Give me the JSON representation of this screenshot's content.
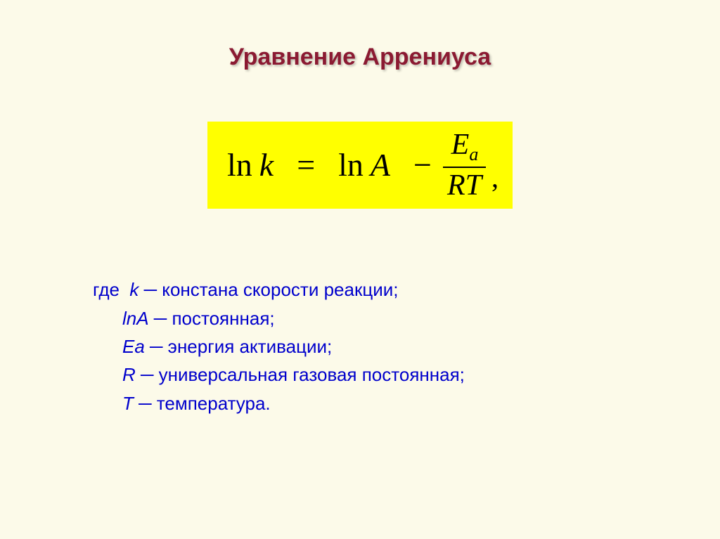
{
  "title": {
    "text": "Уравнение Аррениуса",
    "color": "#8b1a32"
  },
  "equation": {
    "background": "#ffff00",
    "ln1": "ln",
    "k": "k",
    "eq": "=",
    "ln2": "ln",
    "A": "A",
    "minus": "−",
    "num_var": "E",
    "num_sub": "a",
    "den": "RT",
    "comma": ","
  },
  "defs": {
    "text_color": "#0000cc",
    "where": "где",
    "k_sym": "k",
    "k_desc": " ─ констана скорости реакции;",
    "lnA_sym": "lnA",
    "lnA_desc": " ─ постоянная;",
    "Ea_sym": "Ea",
    "Ea_desc": " ─ энергия активации;",
    "R_sym": "R",
    "R_desc": " ─ универсальная газовая постоянная;",
    "T_sym": "T",
    "T_desc": " ─ температура."
  }
}
